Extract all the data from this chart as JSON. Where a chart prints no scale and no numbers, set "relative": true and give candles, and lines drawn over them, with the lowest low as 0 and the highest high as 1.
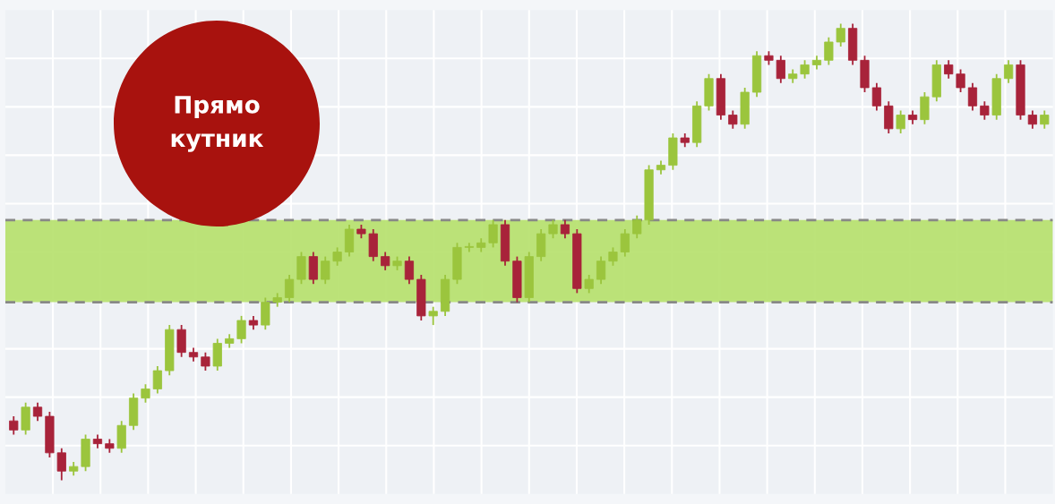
{
  "chart_data": {
    "type": "candlestick",
    "title": "Прямо\nкутник",
    "relative": true,
    "grid": true,
    "categories": [
      null,
      null,
      null,
      null,
      null,
      null,
      null,
      null,
      null,
      null,
      null,
      null,
      null,
      null,
      null,
      null,
      null,
      null,
      null,
      null,
      null,
      null,
      null,
      null,
      null,
      null,
      null,
      null,
      null,
      null,
      null,
      null,
      null,
      null,
      null,
      null,
      null,
      null,
      null,
      null,
      null,
      null,
      null,
      null,
      null,
      null,
      null,
      null,
      null,
      null,
      null,
      null,
      null,
      null,
      null,
      null,
      null,
      null,
      null,
      null,
      null,
      null,
      null,
      null,
      null,
      null,
      null,
      null,
      null,
      null,
      null,
      null,
      null,
      null,
      null,
      null,
      null,
      null,
      null,
      null,
      null,
      null,
      null,
      null,
      null,
      null,
      null
    ],
    "series": [
      {
        "colors": [
          "#a8233a",
          "#9bc53d",
          "#a8233a",
          "#a8233a",
          "#a8233a",
          "#9bc53d",
          "#9bc53d",
          "#a8233a",
          "#a8233a",
          "#9bc53d",
          "#9bc53d",
          "#9bc53d",
          "#9bc53d",
          "#9bc53d",
          "#a8233a",
          "#a8233a",
          "#a8233a",
          "#9bc53d",
          "#9bc53d",
          "#9bc53d",
          "#a8233a",
          "#9bc53d",
          "#9bc53d",
          "#9bc53d",
          "#9bc53d",
          "#a8233a",
          "#9bc53d",
          "#9bc53d",
          "#9bc53d",
          "#a8233a",
          "#a8233a",
          "#a8233a",
          "#9bc53d",
          "#a8233a",
          "#a8233a",
          "#9bc53d",
          "#9bc53d",
          "#9bc53d",
          "#9bc53d",
          "#9bc53d",
          "#9bc53d",
          "#a8233a",
          "#a8233a",
          "#9bc53d",
          "#9bc53d",
          "#9bc53d",
          "#a8233a",
          "#a8233a",
          "#9bc53d",
          "#9bc53d",
          "#9bc53d",
          "#9bc53d",
          "#9bc53d",
          "#9bc53d",
          "#9bc53d",
          "#9bc53d",
          "#a8233a",
          "#9bc53d",
          "#9bc53d",
          "#a8233a",
          "#a8233a",
          "#9bc53d",
          "#9bc53d",
          "#a8233a",
          "#a8233a",
          "#9bc53d",
          "#9bc53d",
          "#9bc53d",
          "#9bc53d",
          "#9bc53d",
          "#a8233a",
          "#a8233a",
          "#a8233a",
          "#a8233a",
          "#9bc53d",
          "#a8233a",
          "#9bc53d",
          "#9bc53d",
          "#a8233a",
          "#a8233a",
          "#a8233a",
          "#a8233a",
          "#9bc53d",
          "#9bc53d",
          "#a8233a",
          "#a8233a",
          "#9bc53d"
        ],
        "ohlc": [
          [
            0.13,
            0.14,
            0.1,
            0.11
          ],
          [
            0.11,
            0.17,
            0.1,
            0.16
          ],
          [
            0.16,
            0.17,
            0.13,
            0.14
          ],
          [
            0.14,
            0.15,
            0.05,
            0.06
          ],
          [
            0.06,
            0.07,
            0,
            0.02
          ],
          [
            0.02,
            0.04,
            0.01,
            0.03
          ],
          [
            0.03,
            0.1,
            0.02,
            0.09
          ],
          [
            0.09,
            0.1,
            0.07,
            0.08
          ],
          [
            0.08,
            0.09,
            0.06,
            0.07
          ],
          [
            0.07,
            0.13,
            0.06,
            0.12
          ],
          [
            0.12,
            0.19,
            0.11,
            0.18
          ],
          [
            0.18,
            0.21,
            0.17,
            0.2
          ],
          [
            0.2,
            0.25,
            0.19,
            0.24
          ],
          [
            0.24,
            0.34,
            0.23,
            0.33
          ],
          [
            0.33,
            0.34,
            0.27,
            0.28
          ],
          [
            0.28,
            0.29,
            0.26,
            0.27
          ],
          [
            0.27,
            0.28,
            0.24,
            0.25
          ],
          [
            0.25,
            0.31,
            0.24,
            0.3
          ],
          [
            0.3,
            0.32,
            0.29,
            0.31
          ],
          [
            0.31,
            0.36,
            0.3,
            0.35
          ],
          [
            0.35,
            0.36,
            0.33,
            0.34
          ],
          [
            0.34,
            0.4,
            0.33,
            0.39
          ],
          [
            0.39,
            0.41,
            0.38,
            0.4
          ],
          [
            0.4,
            0.45,
            0.39,
            0.44
          ],
          [
            0.44,
            0.5,
            0.43,
            0.49
          ],
          [
            0.49,
            0.5,
            0.43,
            0.44
          ],
          [
            0.44,
            0.49,
            0.43,
            0.48
          ],
          [
            0.48,
            0.51,
            0.47,
            0.5
          ],
          [
            0.5,
            0.56,
            0.49,
            0.55
          ],
          [
            0.55,
            0.56,
            0.53,
            0.54
          ],
          [
            0.54,
            0.55,
            0.48,
            0.49
          ],
          [
            0.49,
            0.5,
            0.46,
            0.47
          ],
          [
            0.47,
            0.49,
            0.46,
            0.48
          ],
          [
            0.48,
            0.49,
            0.43,
            0.44
          ],
          [
            0.44,
            0.45,
            0.35,
            0.36
          ],
          [
            0.36,
            0.38,
            0.34,
            0.37
          ],
          [
            0.37,
            0.45,
            0.36,
            0.44
          ],
          [
            0.44,
            0.52,
            0.43,
            0.51
          ],
          [
            0.51,
            0.52,
            0.5,
            0.51
          ],
          [
            0.51,
            0.53,
            0.5,
            0.52
          ],
          [
            0.52,
            0.57,
            0.51,
            0.56
          ],
          [
            0.56,
            0.57,
            0.47,
            0.48
          ],
          [
            0.48,
            0.49,
            0.39,
            0.4
          ],
          [
            0.4,
            0.5,
            0.39,
            0.49
          ],
          [
            0.49,
            0.55,
            0.48,
            0.54
          ],
          [
            0.54,
            0.57,
            0.53,
            0.56
          ],
          [
            0.56,
            0.57,
            0.53,
            0.54
          ],
          [
            0.54,
            0.55,
            0.41,
            0.42
          ],
          [
            0.42,
            0.45,
            0.41,
            0.44
          ],
          [
            0.44,
            0.49,
            0.43,
            0.48
          ],
          [
            0.48,
            0.51,
            0.47,
            0.5
          ],
          [
            0.5,
            0.55,
            0.49,
            0.54
          ],
          [
            0.54,
            0.58,
            0.53,
            0.57
          ],
          [
            0.57,
            0.69,
            0.56,
            0.68
          ],
          [
            0.68,
            0.7,
            0.67,
            0.69
          ],
          [
            0.69,
            0.76,
            0.68,
            0.75
          ],
          [
            0.75,
            0.76,
            0.73,
            0.74
          ],
          [
            0.74,
            0.83,
            0.73,
            0.82
          ],
          [
            0.82,
            0.89,
            0.81,
            0.88
          ],
          [
            0.88,
            0.89,
            0.79,
            0.8
          ],
          [
            0.8,
            0.81,
            0.77,
            0.78
          ],
          [
            0.78,
            0.86,
            0.77,
            0.85
          ],
          [
            0.85,
            0.94,
            0.84,
            0.93
          ],
          [
            0.93,
            0.94,
            0.91,
            0.92
          ],
          [
            0.92,
            0.93,
            0.87,
            0.88
          ],
          [
            0.88,
            0.9,
            0.87,
            0.89
          ],
          [
            0.89,
            0.92,
            0.88,
            0.91
          ],
          [
            0.91,
            0.93,
            0.9,
            0.92
          ],
          [
            0.92,
            0.97,
            0.91,
            0.96
          ],
          [
            0.96,
            1,
            0.95,
            0.99
          ],
          [
            0.99,
            1,
            0.91,
            0.92
          ],
          [
            0.92,
            0.93,
            0.85,
            0.86
          ],
          [
            0.86,
            0.87,
            0.81,
            0.82
          ],
          [
            0.82,
            0.83,
            0.76,
            0.77
          ],
          [
            0.77,
            0.81,
            0.76,
            0.8
          ],
          [
            0.8,
            0.81,
            0.78,
            0.79
          ],
          [
            0.79,
            0.85,
            0.78,
            0.84
          ],
          [
            0.84,
            0.92,
            0.83,
            0.91
          ],
          [
            0.91,
            0.92,
            0.88,
            0.89
          ],
          [
            0.89,
            0.9,
            0.85,
            0.86
          ],
          [
            0.86,
            0.87,
            0.81,
            0.82
          ],
          [
            0.82,
            0.83,
            0.79,
            0.8
          ],
          [
            0.8,
            0.89,
            0.79,
            0.88
          ],
          [
            0.88,
            0.92,
            0.87,
            0.91
          ],
          [
            0.91,
            0.92,
            0.79,
            0.8
          ],
          [
            0.8,
            0.81,
            0.77,
            0.78
          ],
          [
            0.78,
            0.81,
            0.77,
            0.8
          ]
        ]
      }
    ],
    "bands": [
      {
        "axis": "y",
        "from": 0.39,
        "to": 0.57,
        "color": "#b5e06a"
      }
    ],
    "ref_lines": [
      {
        "axis": "y",
        "value": 0.39,
        "color": "#888888",
        "line_style": "dashed"
      },
      {
        "axis": "y",
        "value": 0.57,
        "color": "#888888",
        "line_style": "dashed"
      }
    ]
  }
}
